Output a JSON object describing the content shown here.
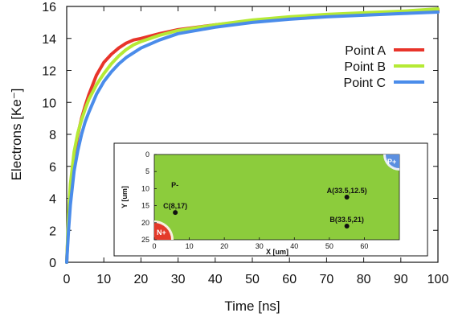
{
  "chart_data": {
    "type": "line",
    "xlabel": "Time [ns]",
    "ylabel": "Electrons [Ke⁻]",
    "xlim": [
      0,
      100
    ],
    "ylim": [
      0,
      16
    ],
    "x_ticks": [
      0,
      10,
      20,
      30,
      40,
      50,
      60,
      70,
      80,
      90,
      100
    ],
    "y_ticks": [
      0,
      2,
      4,
      6,
      8,
      10,
      12,
      14,
      16
    ],
    "legend_position": "top-right",
    "series": [
      {
        "name": "Point A",
        "color": "#e8342a",
        "x": [
          0,
          0.5,
          1,
          2,
          3,
          4,
          5,
          6,
          8,
          10,
          12,
          14,
          16,
          18,
          20,
          25,
          30,
          40,
          50,
          60,
          70,
          80,
          90,
          100
        ],
        "y": [
          0,
          2.6,
          4.4,
          6.6,
          8.0,
          9.0,
          9.8,
          10.5,
          11.7,
          12.5,
          13.0,
          13.4,
          13.7,
          13.9,
          14.0,
          14.3,
          14.55,
          14.85,
          15.1,
          15.3,
          15.45,
          15.55,
          15.65,
          15.75
        ]
      },
      {
        "name": "Point B",
        "color": "#b5ea35",
        "x": [
          0,
          0.5,
          1,
          2,
          3,
          4,
          5,
          6,
          8,
          10,
          12,
          14,
          16,
          18,
          20,
          25,
          30,
          40,
          50,
          60,
          70,
          80,
          90,
          100
        ],
        "y": [
          0,
          3.0,
          4.9,
          6.9,
          8.1,
          8.9,
          9.6,
          10.2,
          11.1,
          11.8,
          12.4,
          12.9,
          13.3,
          13.6,
          13.8,
          14.2,
          14.5,
          14.85,
          15.15,
          15.35,
          15.5,
          15.6,
          15.7,
          15.85
        ]
      },
      {
        "name": "Point C",
        "color": "#4a8cea",
        "x": [
          0,
          0.5,
          1,
          2,
          3,
          4,
          5,
          6,
          8,
          10,
          12,
          14,
          16,
          18,
          20,
          25,
          30,
          40,
          50,
          60,
          70,
          80,
          90,
          100
        ],
        "y": [
          0,
          2.0,
          3.6,
          5.7,
          7.0,
          8.0,
          8.8,
          9.4,
          10.5,
          11.3,
          11.9,
          12.4,
          12.8,
          13.1,
          13.4,
          13.9,
          14.3,
          14.7,
          15.0,
          15.2,
          15.35,
          15.45,
          15.55,
          15.65
        ]
      }
    ],
    "inset": {
      "type": "device-diagram",
      "background": "#8ccc3c",
      "xlabel": "X [um]",
      "ylabel": "Y [um]",
      "xlim": [
        0,
        70
      ],
      "ylim": [
        0,
        25
      ],
      "x_ticks": [
        0,
        10,
        20,
        30,
        40,
        50,
        60
      ],
      "y_ticks": [
        0,
        5,
        10,
        15,
        20,
        25
      ],
      "regions": [
        {
          "label": "P-",
          "x": 3,
          "y": 5,
          "color": "#111111"
        },
        {
          "label": "N+",
          "color": "#e43a2a",
          "corner": "bottom-left"
        },
        {
          "label": "P+",
          "color": "#5b8fe0",
          "corner": "top-right"
        }
      ],
      "points": [
        {
          "label": "A(33.5,12.5)",
          "x": 55,
          "y": 12.5
        },
        {
          "label": "B(33.5,21)",
          "x": 55,
          "y": 21
        },
        {
          "label": "C(8,17)",
          "x": 6,
          "y": 17
        }
      ]
    }
  }
}
